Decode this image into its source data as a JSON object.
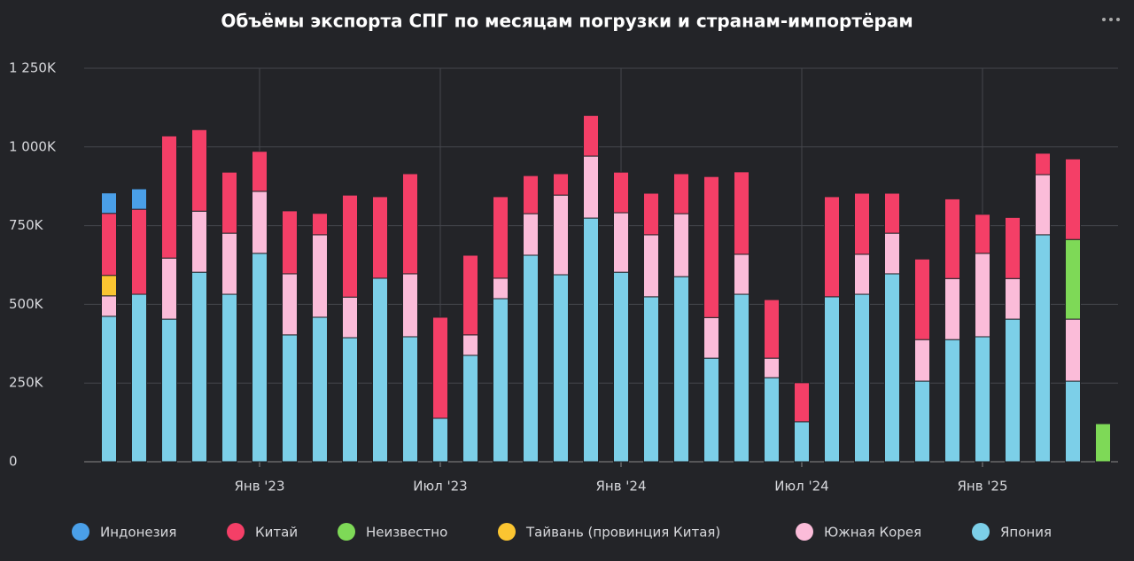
{
  "chart_data": {
    "type": "stacked_bar",
    "title": "Объёмы экспорта СПГ по месяцам погрузки и странам-импортёрам",
    "categories": [
      null,
      null,
      null,
      null,
      null,
      "Янв '23",
      null,
      null,
      null,
      null,
      null,
      "Июл '23",
      null,
      null,
      null,
      null,
      null,
      "Янв '24",
      null,
      null,
      null,
      null,
      null,
      "Июл '24",
      null,
      null,
      null,
      null,
      null,
      "Янв '25",
      null,
      null,
      null,
      null
    ],
    "ylim": [
      0,
      1250000
    ],
    "yticks": [
      0,
      {
        "value": 250000,
        "label": "250K"
      },
      {
        "value": 500000,
        "label": "500K"
      },
      {
        "value": 750000,
        "label": "750K"
      },
      {
        "value": 1000000,
        "label": "1 000K"
      },
      {
        "value": 1250000,
        "label": "1 250K"
      }
    ],
    "grid": true,
    "legend": "bottom",
    "series": [
      {
        "name": "Япония",
        "color": "#7ccfe8",
        "values": [
          462000,
          532000,
          453000,
          602000,
          532000,
          662000,
          403000,
          459000,
          394000,
          583000,
          397000,
          138000,
          338000,
          518000,
          656000,
          594000,
          774000,
          602000,
          524000,
          588000,
          329000,
          532000,
          267000,
          127000,
          524000,
          532000,
          597000,
          256000,
          388000,
          397000,
          453000,
          721000,
          256000,
          null
        ]
      },
      {
        "name": "Южная Корея",
        "color": "#fbbcd9",
        "values": [
          65000,
          null,
          194000,
          194000,
          194000,
          197000,
          194000,
          262000,
          129000,
          null,
          200000,
          null,
          65000,
          65000,
          132000,
          253000,
          197000,
          189000,
          197000,
          200000,
          129000,
          127000,
          62000,
          null,
          null,
          127000,
          129000,
          132000,
          194000,
          265000,
          129000,
          191000,
          197000,
          null
        ]
      },
      {
        "name": "Тайвань (провинция Китая)",
        "color": "#fbc531",
        "values": [
          65000,
          null,
          null,
          null,
          null,
          null,
          null,
          null,
          null,
          null,
          null,
          null,
          null,
          null,
          null,
          null,
          null,
          null,
          null,
          null,
          null,
          null,
          null,
          null,
          null,
          null,
          null,
          null,
          null,
          null,
          null,
          null,
          null,
          null
        ]
      },
      {
        "name": "Неизвестно",
        "color": "#7ed957",
        "values": [
          null,
          null,
          null,
          null,
          null,
          null,
          null,
          null,
          null,
          null,
          null,
          null,
          null,
          null,
          null,
          null,
          null,
          null,
          null,
          null,
          null,
          null,
          null,
          null,
          null,
          null,
          null,
          null,
          null,
          null,
          null,
          null,
          253000,
          121000
        ]
      },
      {
        "name": "Китай",
        "color": "#f43f67",
        "values": [
          197000,
          270000,
          388000,
          259000,
          194000,
          127000,
          200000,
          68000,
          324000,
          259000,
          318000,
          321000,
          253000,
          259000,
          121000,
          68000,
          129000,
          129000,
          132000,
          127000,
          448000,
          262000,
          186000,
          124000,
          318000,
          194000,
          127000,
          256000,
          253000,
          124000,
          194000,
          68000,
          256000,
          null
        ]
      },
      {
        "name": "Индонезия",
        "color": "#4a9fe8",
        "values": [
          65000,
          65000,
          null,
          null,
          null,
          null,
          null,
          null,
          null,
          null,
          null,
          null,
          null,
          null,
          null,
          null,
          null,
          null,
          null,
          null,
          null,
          null,
          null,
          null,
          null,
          null,
          null,
          null,
          null,
          null,
          null,
          null,
          null,
          null
        ]
      }
    ]
  }
}
